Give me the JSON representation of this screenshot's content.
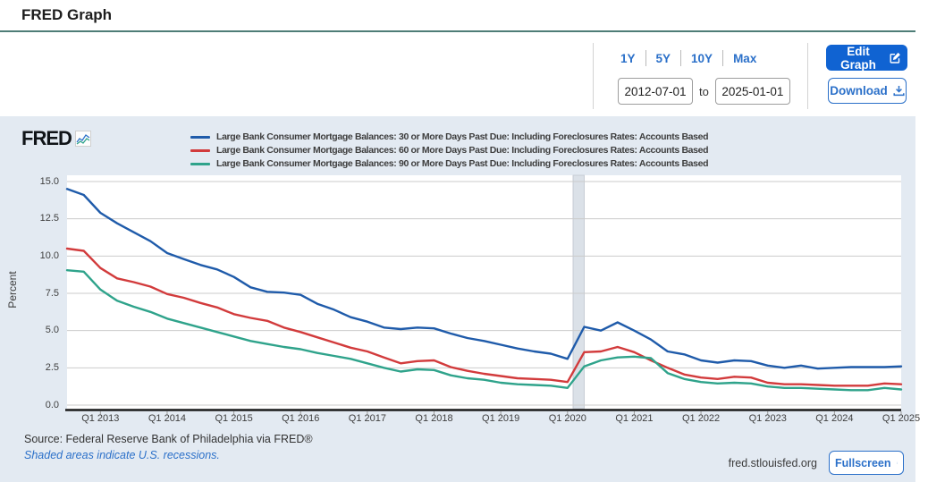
{
  "page": {
    "title": "FRED Graph"
  },
  "controls": {
    "ranges": [
      "1Y",
      "5Y",
      "10Y",
      "Max"
    ],
    "date_from": "2012-07-01",
    "to_label": "to",
    "date_to": "2025-01-01",
    "edit_graph_label": "Edit Graph",
    "download_label": "Download"
  },
  "chart": {
    "brand": "FRED",
    "ylabel": "Percent",
    "footer": {
      "source": "Source: Federal Reserve Bank of Philadelphia via FRED®",
      "recession_note": "Shaded areas indicate U.S. recessions.",
      "site": "fred.stlouisfed.org",
      "fullscreen_label": "Fullscreen"
    }
  },
  "chart_data": {
    "type": "line",
    "frequency": "quarterly",
    "x_start": "2012-07-01",
    "x_end": "2025-01-01",
    "ylabel": "Percent",
    "ylim": [
      0,
      15
    ],
    "y_ticks": [
      0.0,
      2.5,
      5.0,
      7.5,
      10.0,
      12.5,
      15.0
    ],
    "x_tick_labels": [
      "Q1 2013",
      "Q1 2014",
      "Q1 2015",
      "Q1 2016",
      "Q1 2017",
      "Q1 2018",
      "Q1 2019",
      "Q1 2020",
      "Q1 2021",
      "Q1 2022",
      "Q1 2023",
      "Q1 2024",
      "Q1 2025"
    ],
    "grid": "horizontal",
    "legend_position": "top-left",
    "recession_band": {
      "start": "2020-02-01",
      "end": "2020-04-01"
    },
    "quarters": [
      "2012-Q3",
      "2012-Q4",
      "2013-Q1",
      "2013-Q2",
      "2013-Q3",
      "2013-Q4",
      "2014-Q1",
      "2014-Q2",
      "2014-Q3",
      "2014-Q4",
      "2015-Q1",
      "2015-Q2",
      "2015-Q3",
      "2015-Q4",
      "2016-Q1",
      "2016-Q2",
      "2016-Q3",
      "2016-Q4",
      "2017-Q1",
      "2017-Q2",
      "2017-Q3",
      "2017-Q4",
      "2018-Q1",
      "2018-Q2",
      "2018-Q3",
      "2018-Q4",
      "2019-Q1",
      "2019-Q2",
      "2019-Q3",
      "2019-Q4",
      "2020-Q1",
      "2020-Q2",
      "2020-Q3",
      "2020-Q4",
      "2021-Q1",
      "2021-Q2",
      "2021-Q3",
      "2021-Q4",
      "2022-Q1",
      "2022-Q2",
      "2022-Q3",
      "2022-Q4",
      "2023-Q1",
      "2023-Q2",
      "2023-Q3",
      "2023-Q4",
      "2024-Q1",
      "2024-Q2",
      "2024-Q3",
      "2024-Q4",
      "2025-Q1"
    ],
    "series": [
      {
        "name": "Large Bank Consumer Mortgage Balances: 30 or More Days Past Due: Including Foreclosures Rates: Accounts Based",
        "color": "#1f5baa",
        "values": [
          14.5,
          14.1,
          12.9,
          12.2,
          11.6,
          11.0,
          10.2,
          9.8,
          9.4,
          9.1,
          8.6,
          7.9,
          7.6,
          7.55,
          7.4,
          6.8,
          6.4,
          5.9,
          5.6,
          5.2,
          5.1,
          5.2,
          5.15,
          4.8,
          4.5,
          4.3,
          4.05,
          3.8,
          3.6,
          3.45,
          3.1,
          5.25,
          5.0,
          5.55,
          5.0,
          4.4,
          3.6,
          3.4,
          3.0,
          2.85,
          3.0,
          2.95,
          2.65,
          2.5,
          2.65,
          2.45,
          2.5,
          2.55,
          2.55,
          2.55,
          2.6
        ]
      },
      {
        "name": "Large Bank Consumer Mortgage Balances: 60 or More Days Past Due: Including Foreclosures Rates: Accounts Based",
        "color": "#d23b3c",
        "values": [
          10.5,
          10.35,
          9.2,
          8.5,
          8.25,
          7.95,
          7.45,
          7.2,
          6.85,
          6.55,
          6.1,
          5.85,
          5.65,
          5.2,
          4.9,
          4.55,
          4.2,
          3.85,
          3.6,
          3.2,
          2.8,
          2.95,
          3.0,
          2.55,
          2.3,
          2.1,
          1.95,
          1.8,
          1.75,
          1.7,
          1.55,
          3.55,
          3.6,
          3.9,
          3.55,
          3.0,
          2.5,
          2.05,
          1.85,
          1.75,
          1.9,
          1.85,
          1.5,
          1.4,
          1.4,
          1.35,
          1.3,
          1.3,
          1.3,
          1.45,
          1.4
        ]
      },
      {
        "name": "Large Bank Consumer Mortgage Balances: 90 or More Days Past Due: Including Foreclosures Rates: Accounts Based",
        "color": "#2fa38b",
        "values": [
          9.05,
          8.95,
          7.75,
          7.0,
          6.6,
          6.25,
          5.8,
          5.5,
          5.2,
          4.9,
          4.6,
          4.3,
          4.1,
          3.9,
          3.75,
          3.5,
          3.3,
          3.1,
          2.8,
          2.5,
          2.25,
          2.4,
          2.35,
          2.0,
          1.8,
          1.7,
          1.5,
          1.4,
          1.35,
          1.3,
          1.15,
          2.6,
          3.0,
          3.2,
          3.25,
          3.15,
          2.15,
          1.75,
          1.55,
          1.45,
          1.5,
          1.45,
          1.25,
          1.15,
          1.15,
          1.1,
          1.05,
          1.0,
          1.0,
          1.15,
          1.05
        ]
      }
    ]
  }
}
